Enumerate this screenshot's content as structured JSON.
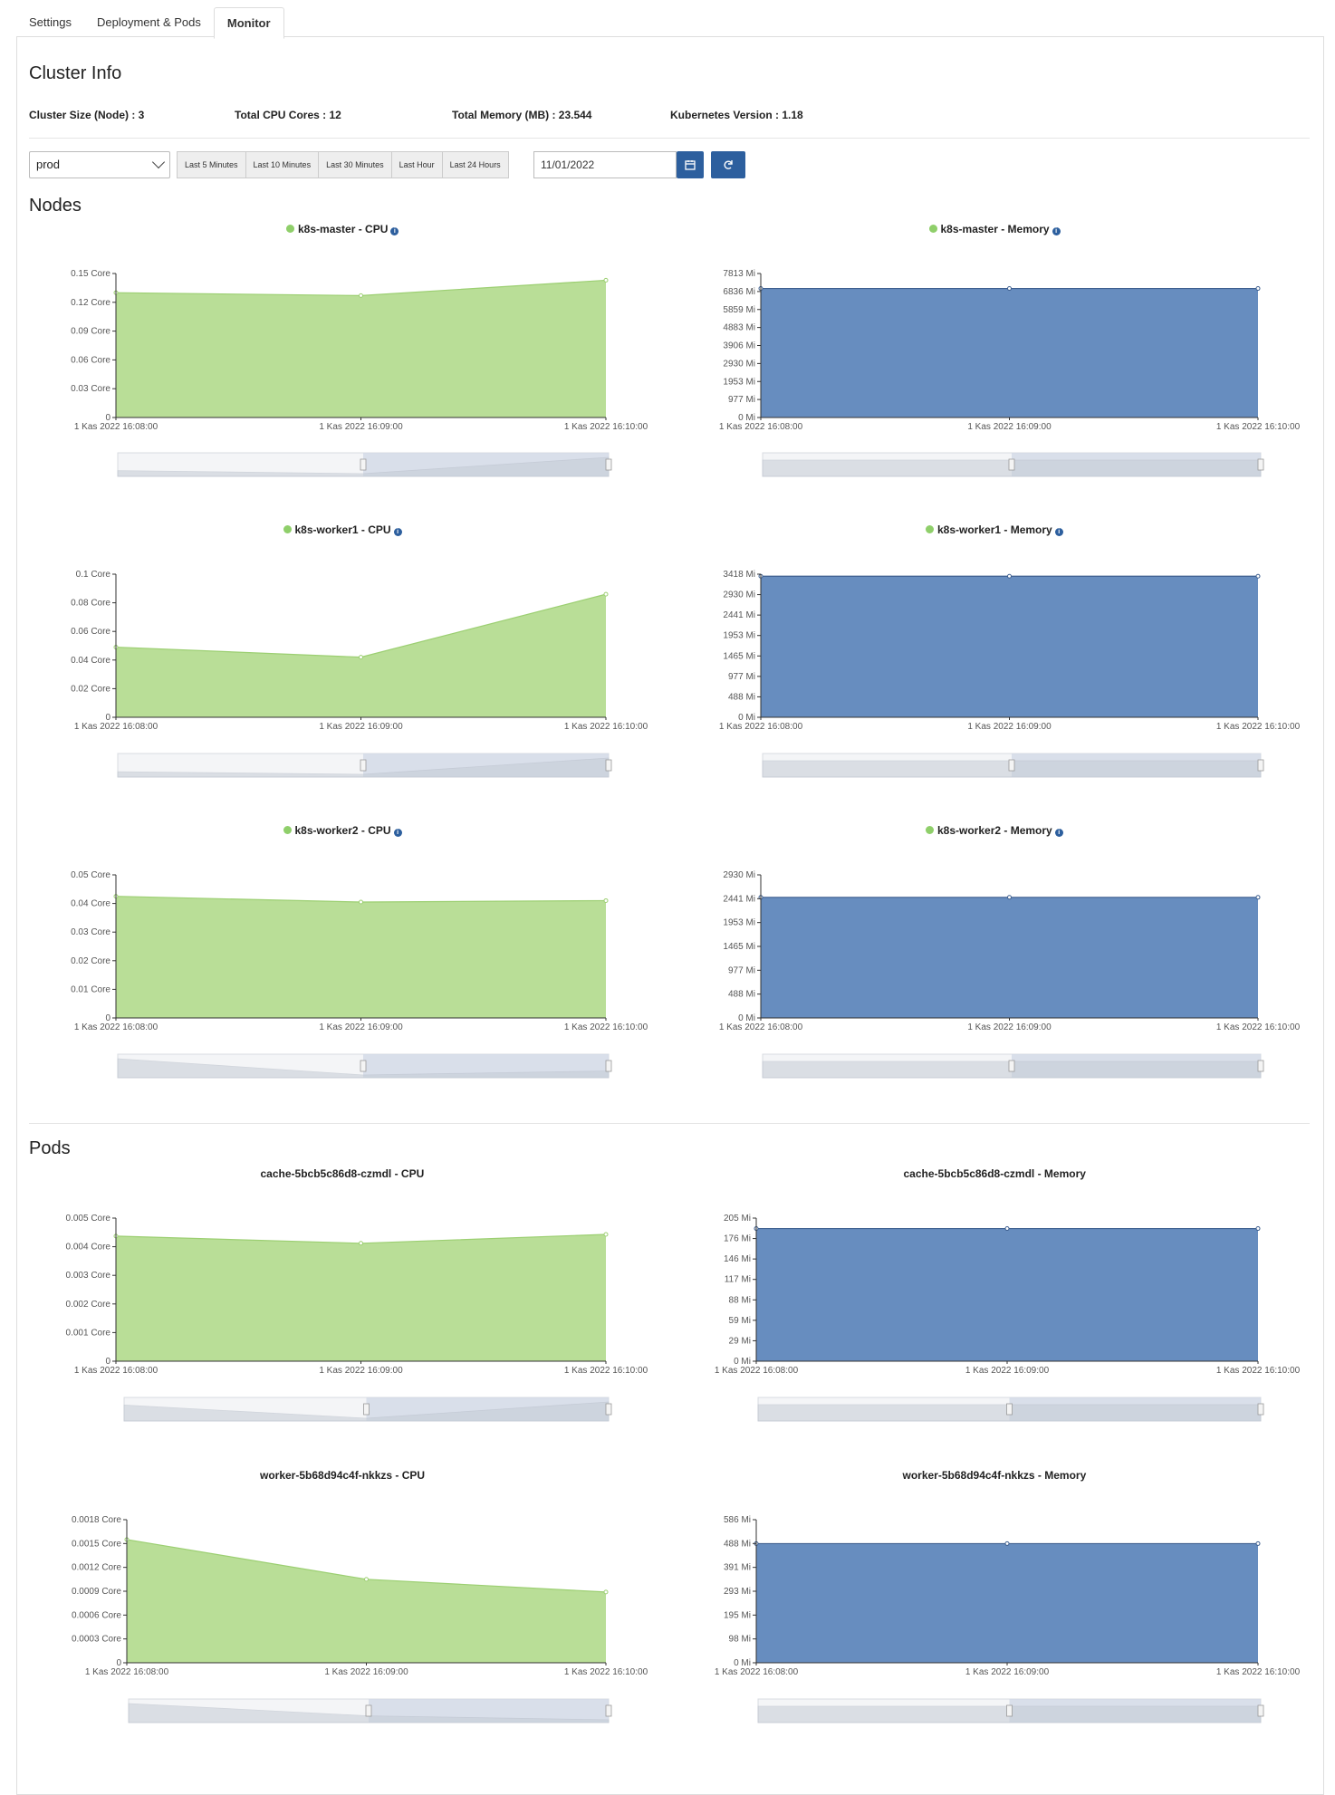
{
  "tabs": [
    {
      "label": "Settings",
      "active": false
    },
    {
      "label": "Deployment & Pods",
      "active": false
    },
    {
      "label": "Monitor",
      "active": true
    }
  ],
  "cluster": {
    "title": "Cluster Info",
    "size": "Cluster Size (Node) : 3",
    "cpu": "Total CPU Cores : 12",
    "memory": "Total Memory (MB) : 23.544",
    "version": "Kubernetes Version : 1.18"
  },
  "controls": {
    "namespace": "prod",
    "ranges": [
      "Last 5 Minutes",
      "Last 10 Minutes",
      "Last 30 Minutes",
      "Last Hour",
      "Last 24 Hours"
    ],
    "date": "11/01/2022"
  },
  "sections": {
    "nodes": "Nodes",
    "pods": "Pods"
  },
  "colors": {
    "cpu": "#b9de97",
    "cpu_line": "#9ccf72",
    "mem": "#678dbf",
    "mem_line": "#3e5f8f",
    "accent": "#2d5f9e"
  },
  "x_labels": [
    "1 Kas 2022 16:08:00",
    "1 Kas 2022 16:09:00",
    "1 Kas 2022 16:10:00"
  ],
  "charts": [
    {
      "id": "c0",
      "name": "k8s-master",
      "metric": "CPU",
      "status": true,
      "chart_data": {
        "type": "area",
        "x": [
          "1 Kas 2022 16:08:00",
          "1 Kas 2022 16:09:00",
          "1 Kas 2022 16:10:00"
        ],
        "values": [
          0.13,
          0.127,
          0.143
        ],
        "ylim": [
          0,
          0.15
        ],
        "unit": "Core",
        "yticks": [
          "0",
          "0.03 Core",
          "0.06 Core",
          "0.09 Core",
          "0.12 Core",
          "0.15 Core"
        ]
      }
    },
    {
      "id": "c1",
      "name": "k8s-master",
      "metric": "Memory",
      "status": true,
      "chart_data": {
        "type": "area",
        "x": [
          "1 Kas 2022 16:08:00",
          "1 Kas 2022 16:09:00",
          "1 Kas 2022 16:10:00"
        ],
        "values": [
          7000,
          7000,
          7000
        ],
        "ylim": [
          0,
          7813
        ],
        "unit": "Mi",
        "yticks": [
          "0 Mi",
          "977 Mi",
          "1953 Mi",
          "2930 Mi",
          "3906 Mi",
          "4883 Mi",
          "5859 Mi",
          "6836 Mi",
          "7813 Mi"
        ]
      }
    },
    {
      "id": "c2",
      "name": "k8s-worker1",
      "metric": "CPU",
      "status": true,
      "chart_data": {
        "type": "area",
        "x": [
          "1 Kas 2022 16:08:00",
          "1 Kas 2022 16:09:00",
          "1 Kas 2022 16:10:00"
        ],
        "values": [
          0.049,
          0.042,
          0.086
        ],
        "ylim": [
          0,
          0.1
        ],
        "unit": "Core",
        "yticks": [
          "0",
          "0.02 Core",
          "0.04 Core",
          "0.06 Core",
          "0.08 Core",
          "0.1 Core"
        ]
      }
    },
    {
      "id": "c3",
      "name": "k8s-worker1",
      "metric": "Memory",
      "status": true,
      "chart_data": {
        "type": "area",
        "x": [
          "1 Kas 2022 16:08:00",
          "1 Kas 2022 16:09:00",
          "1 Kas 2022 16:10:00"
        ],
        "values": [
          3370,
          3370,
          3370
        ],
        "ylim": [
          0,
          3418
        ],
        "unit": "Mi",
        "yticks": [
          "0 Mi",
          "488 Mi",
          "977 Mi",
          "1465 Mi",
          "1953 Mi",
          "2441 Mi",
          "2930 Mi",
          "3418 Mi"
        ]
      }
    },
    {
      "id": "c4",
      "name": "k8s-worker2",
      "metric": "CPU",
      "status": true,
      "chart_data": {
        "type": "area",
        "x": [
          "1 Kas 2022 16:08:00",
          "1 Kas 2022 16:09:00",
          "1 Kas 2022 16:10:00"
        ],
        "values": [
          0.0425,
          0.0405,
          0.041
        ],
        "ylim": [
          0,
          0.05
        ],
        "unit": "Core",
        "yticks": [
          "0",
          "0.01 Core",
          "0.02 Core",
          "0.03 Core",
          "0.04 Core",
          "0.05 Core"
        ]
      }
    },
    {
      "id": "c5",
      "name": "k8s-worker2",
      "metric": "Memory",
      "status": true,
      "chart_data": {
        "type": "area",
        "x": [
          "1 Kas 2022 16:08:00",
          "1 Kas 2022 16:09:00",
          "1 Kas 2022 16:10:00"
        ],
        "values": [
          2470,
          2470,
          2470
        ],
        "ylim": [
          0,
          2930
        ],
        "unit": "Mi",
        "yticks": [
          "0 Mi",
          "488 Mi",
          "977 Mi",
          "1465 Mi",
          "1953 Mi",
          "2441 Mi",
          "2930 Mi"
        ]
      }
    },
    {
      "id": "c6",
      "name": "cache-5bcb5c86d8-czmdl",
      "metric": "CPU",
      "status": false,
      "chart_data": {
        "type": "area",
        "x": [
          "1 Kas 2022 16:08:00",
          "1 Kas 2022 16:09:00",
          "1 Kas 2022 16:10:00"
        ],
        "values": [
          0.00437,
          0.00412,
          0.00443
        ],
        "ylim": [
          0,
          0.005
        ],
        "unit": "Core",
        "yticks": [
          "0",
          "0.001 Core",
          "0.002 Core",
          "0.003 Core",
          "0.004 Core",
          "0.005 Core"
        ]
      }
    },
    {
      "id": "c7",
      "name": "cache-5bcb5c86d8-czmdl",
      "metric": "Memory",
      "status": false,
      "chart_data": {
        "type": "area",
        "x": [
          "1 Kas 2022 16:08:00",
          "1 Kas 2022 16:09:00",
          "1 Kas 2022 16:10:00"
        ],
        "values": [
          190,
          190,
          190
        ],
        "ylim": [
          0,
          205
        ],
        "unit": "Mi",
        "yticks": [
          "0 Mi",
          "29 Mi",
          "59 Mi",
          "88 Mi",
          "117 Mi",
          "146 Mi",
          "176 Mi",
          "205 Mi"
        ]
      }
    },
    {
      "id": "c8",
      "name": "worker-5b68d94c4f-nkkzs",
      "metric": "CPU",
      "status": false,
      "chart_data": {
        "type": "area",
        "x": [
          "1 Kas 2022 16:08:00",
          "1 Kas 2022 16:09:00",
          "1 Kas 2022 16:10:00"
        ],
        "values": [
          0.00155,
          0.00105,
          0.00089
        ],
        "ylim": [
          0,
          0.0018
        ],
        "unit": "Core",
        "yticks": [
          "0",
          "0.0003 Core",
          "0.0006 Core",
          "0.0009 Core",
          "0.0012 Core",
          "0.0015 Core",
          "0.0018 Core"
        ]
      }
    },
    {
      "id": "c9",
      "name": "worker-5b68d94c4f-nkkzs",
      "metric": "Memory",
      "status": false,
      "chart_data": {
        "type": "area",
        "x": [
          "1 Kas 2022 16:08:00",
          "1 Kas 2022 16:09:00",
          "1 Kas 2022 16:10:00"
        ],
        "values": [
          488,
          488,
          488
        ],
        "ylim": [
          0,
          586
        ],
        "unit": "Mi",
        "yticks": [
          "0 Mi",
          "98 Mi",
          "195 Mi",
          "293 Mi",
          "391 Mi",
          "488 Mi",
          "586 Mi"
        ]
      }
    }
  ]
}
